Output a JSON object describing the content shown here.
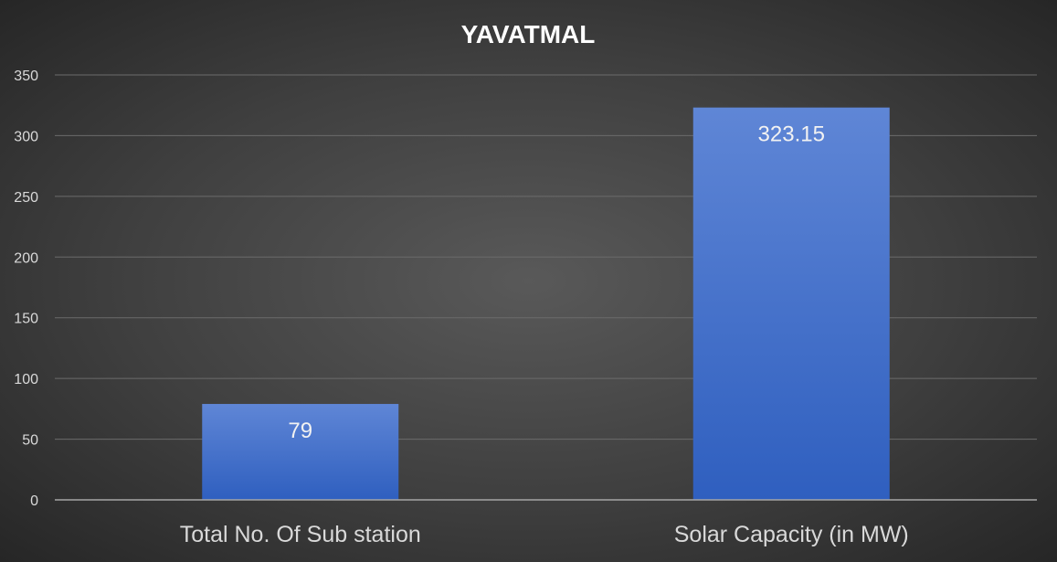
{
  "chart_data": {
    "type": "bar",
    "title": "YAVATMAL",
    "categories": [
      "Total No. Of Sub station",
      "Solar Capacity (in MW)"
    ],
    "values": [
      79,
      323.15
    ],
    "data_labels": [
      "79",
      "323.15"
    ],
    "xlabel": "",
    "ylabel": "",
    "ylim": [
      0,
      350
    ],
    "yticks": [
      0,
      50,
      100,
      150,
      200,
      250,
      300,
      350
    ],
    "ytick_labels": [
      "0",
      "50",
      "100",
      "150",
      "200",
      "250",
      "300",
      "350"
    ],
    "grid": true,
    "legend": "none",
    "colors": {
      "bar_top": "#5f86d6",
      "bar_bottom": "#2f5fbf",
      "background_center": "#595959",
      "background_edge": "#262626",
      "gridline": "#6b6b6b",
      "axis_line": "#a6a6a6",
      "title_text": "#ffffff",
      "tick_text": "#d9d9d9",
      "data_label_text": "#f2f2f2"
    }
  }
}
